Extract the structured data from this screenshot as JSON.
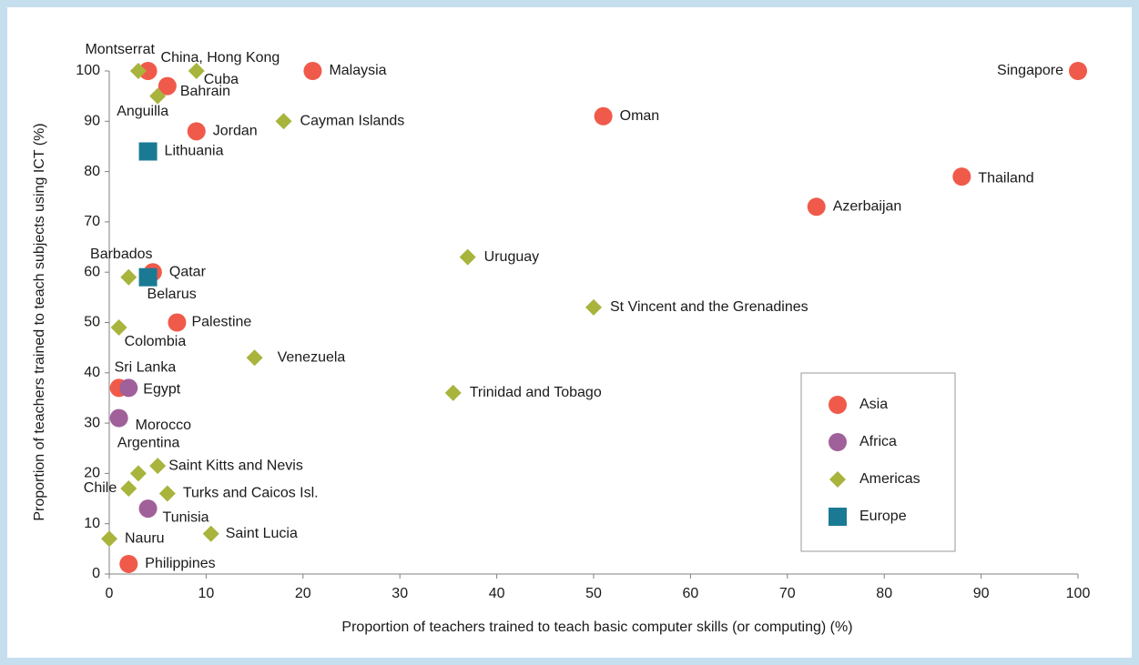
{
  "chart_data": {
    "type": "scatter",
    "xlabel": "Proportion of teachers trained to teach basic computer skills (or computing) (%)",
    "ylabel": "Proportion of teachers trained to teach subjects using ICT (%)",
    "xlim": [
      0,
      100
    ],
    "ylim": [
      0,
      100
    ],
    "xticks": [
      0,
      10,
      20,
      30,
      40,
      50,
      60,
      70,
      80,
      90,
      100
    ],
    "yticks": [
      0,
      10,
      20,
      30,
      40,
      50,
      60,
      70,
      80,
      90,
      100
    ],
    "legend": "right",
    "series": [
      {
        "name": "Asia",
        "color": "#f05a4a",
        "marker": "circle",
        "labels": [
          "China, Hong Kong",
          "Bahrain",
          "Malaysia",
          "Jordan",
          "Singapore",
          "Oman",
          "Thailand",
          "Azerbaijan",
          "Qatar",
          "Palestine",
          "Sri Lanka",
          "Philippines"
        ],
        "x": [
          4,
          6,
          21,
          9,
          100,
          51,
          88,
          73,
          4.5,
          7,
          1,
          2
        ],
        "values": [
          100,
          97,
          100,
          88,
          100,
          91,
          79,
          73,
          60,
          50,
          37,
          2
        ]
      },
      {
        "name": "Africa",
        "color": "#a0609a",
        "marker": "circle",
        "labels": [
          "Egypt",
          "Morocco",
          "Tunisia"
        ],
        "x": [
          2,
          1,
          4
        ],
        "values": [
          37,
          31,
          13
        ]
      },
      {
        "name": "Americas",
        "color": "#a8b43c",
        "marker": "diamond",
        "labels": [
          "Montserrat",
          "Cuba",
          "Anguilla",
          "Cayman Islands",
          "Uruguay",
          "Barbados",
          "St Vincent and the Grenadines",
          "Colombia",
          "Venezuela",
          "Trinidad and Tobago",
          "Argentina",
          "Saint Kitts and Nevis",
          "Chile",
          "Turks and Caicos Isl.",
          "Saint Lucia",
          "Nauru"
        ],
        "x": [
          3,
          9,
          5,
          18,
          37,
          2,
          50,
          1,
          15,
          35.5,
          3,
          5,
          2,
          6,
          10.5,
          0
        ],
        "values": [
          100,
          100,
          95,
          90,
          63,
          59,
          53,
          49,
          43,
          36,
          20,
          21.5,
          17,
          16,
          8,
          7
        ]
      },
      {
        "name": "Europe",
        "color": "#1a7a94",
        "marker": "square",
        "labels": [
          "Lithuania",
          "Belarus"
        ],
        "x": [
          4,
          4
        ],
        "values": [
          84,
          59
        ]
      }
    ]
  }
}
